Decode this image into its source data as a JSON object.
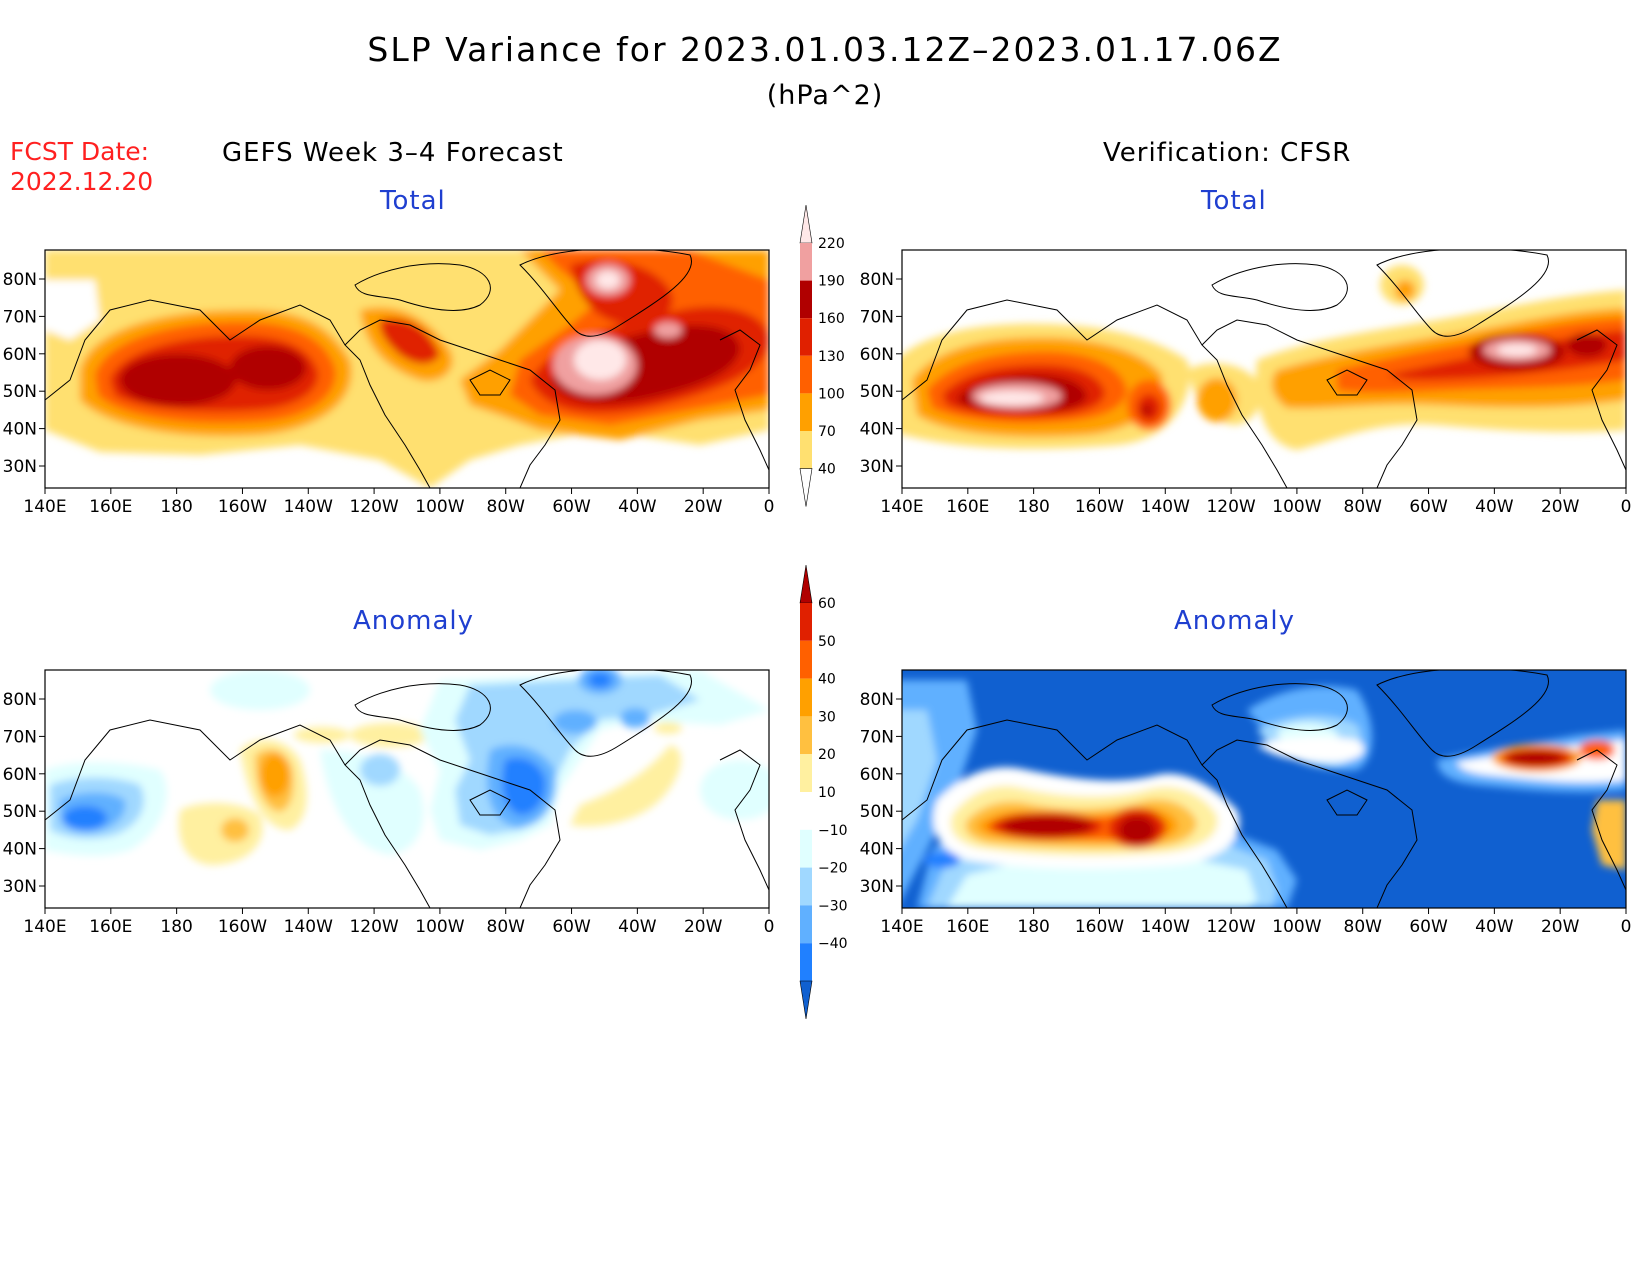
{
  "title": "SLP Variance for 2023.01.03.12Z–2023.01.17.06Z",
  "units": "(hPa^2)",
  "fcst_date": {
    "label": "FCST Date:",
    "value": "2022.12.20"
  },
  "columns": {
    "left": "GEFS Week 3–4 Forecast",
    "right": "Verification: CFSR"
  },
  "panel_titles": {
    "total": "Total",
    "anomaly": "Anomaly"
  },
  "lat_ticks": [
    "80N",
    "70N",
    "60N",
    "50N",
    "40N",
    "30N"
  ],
  "lon_ticks": [
    "140E",
    "160E",
    "180",
    "160W",
    "140W",
    "120W",
    "100W",
    "80W",
    "60W",
    "40W",
    "20W",
    "0"
  ],
  "total_colorbar": {
    "levels": [
      "40",
      "70",
      "100",
      "130",
      "160",
      "190",
      "220"
    ],
    "colors": [
      "#ffe070",
      "#ffa000",
      "#ff6000",
      "#e02000",
      "#b00000",
      "#f0a0a0",
      "#ffe8e8"
    ]
  },
  "anomaly_colorbar": {
    "levels": [
      "−40",
      "−30",
      "−20",
      "−10",
      "10",
      "20",
      "30",
      "40",
      "50",
      "60"
    ],
    "colors": [
      "#1060d0",
      "#2080ff",
      "#60b0ff",
      "#a0d8ff",
      "#e0ffff",
      "#ffffff",
      "#fff0a0",
      "#ffc040",
      "#ffa000",
      "#ff6000",
      "#e02000",
      "#b00000"
    ]
  }
}
